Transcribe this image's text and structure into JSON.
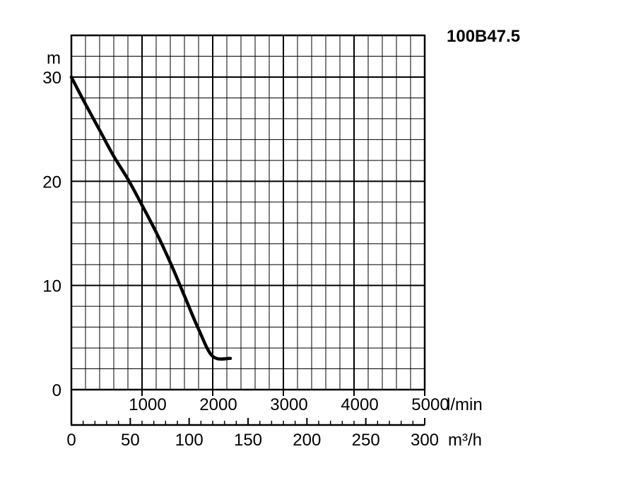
{
  "chart_data": {
    "type": "line",
    "title": "100B47.5",
    "ylabel": "m",
    "xlabel_lmin": "l/min",
    "xlabel_m3h": "m³/h",
    "ylim": [
      0,
      30
    ],
    "xlim_lmin": [
      0,
      5000
    ],
    "xlim_m3h": [
      0,
      300
    ],
    "yticks": [
      0,
      10,
      20,
      30
    ],
    "xticks_lmin": [
      1000,
      2000,
      3000,
      4000,
      5000
    ],
    "xticks_m3h": [
      0,
      50,
      100,
      150,
      200,
      250,
      300
    ],
    "grid": true,
    "series": [
      {
        "color": "#000000",
        "x": [
          0,
          200,
          400,
          600,
          800,
          1000,
          1200,
          1400,
          1600,
          1800,
          2000,
          2250
        ],
        "y": [
          30,
          27.4,
          24.9,
          22.4,
          20.2,
          17.7,
          15.1,
          12.2,
          9,
          5.8,
          3.2,
          3
        ]
      }
    ]
  }
}
